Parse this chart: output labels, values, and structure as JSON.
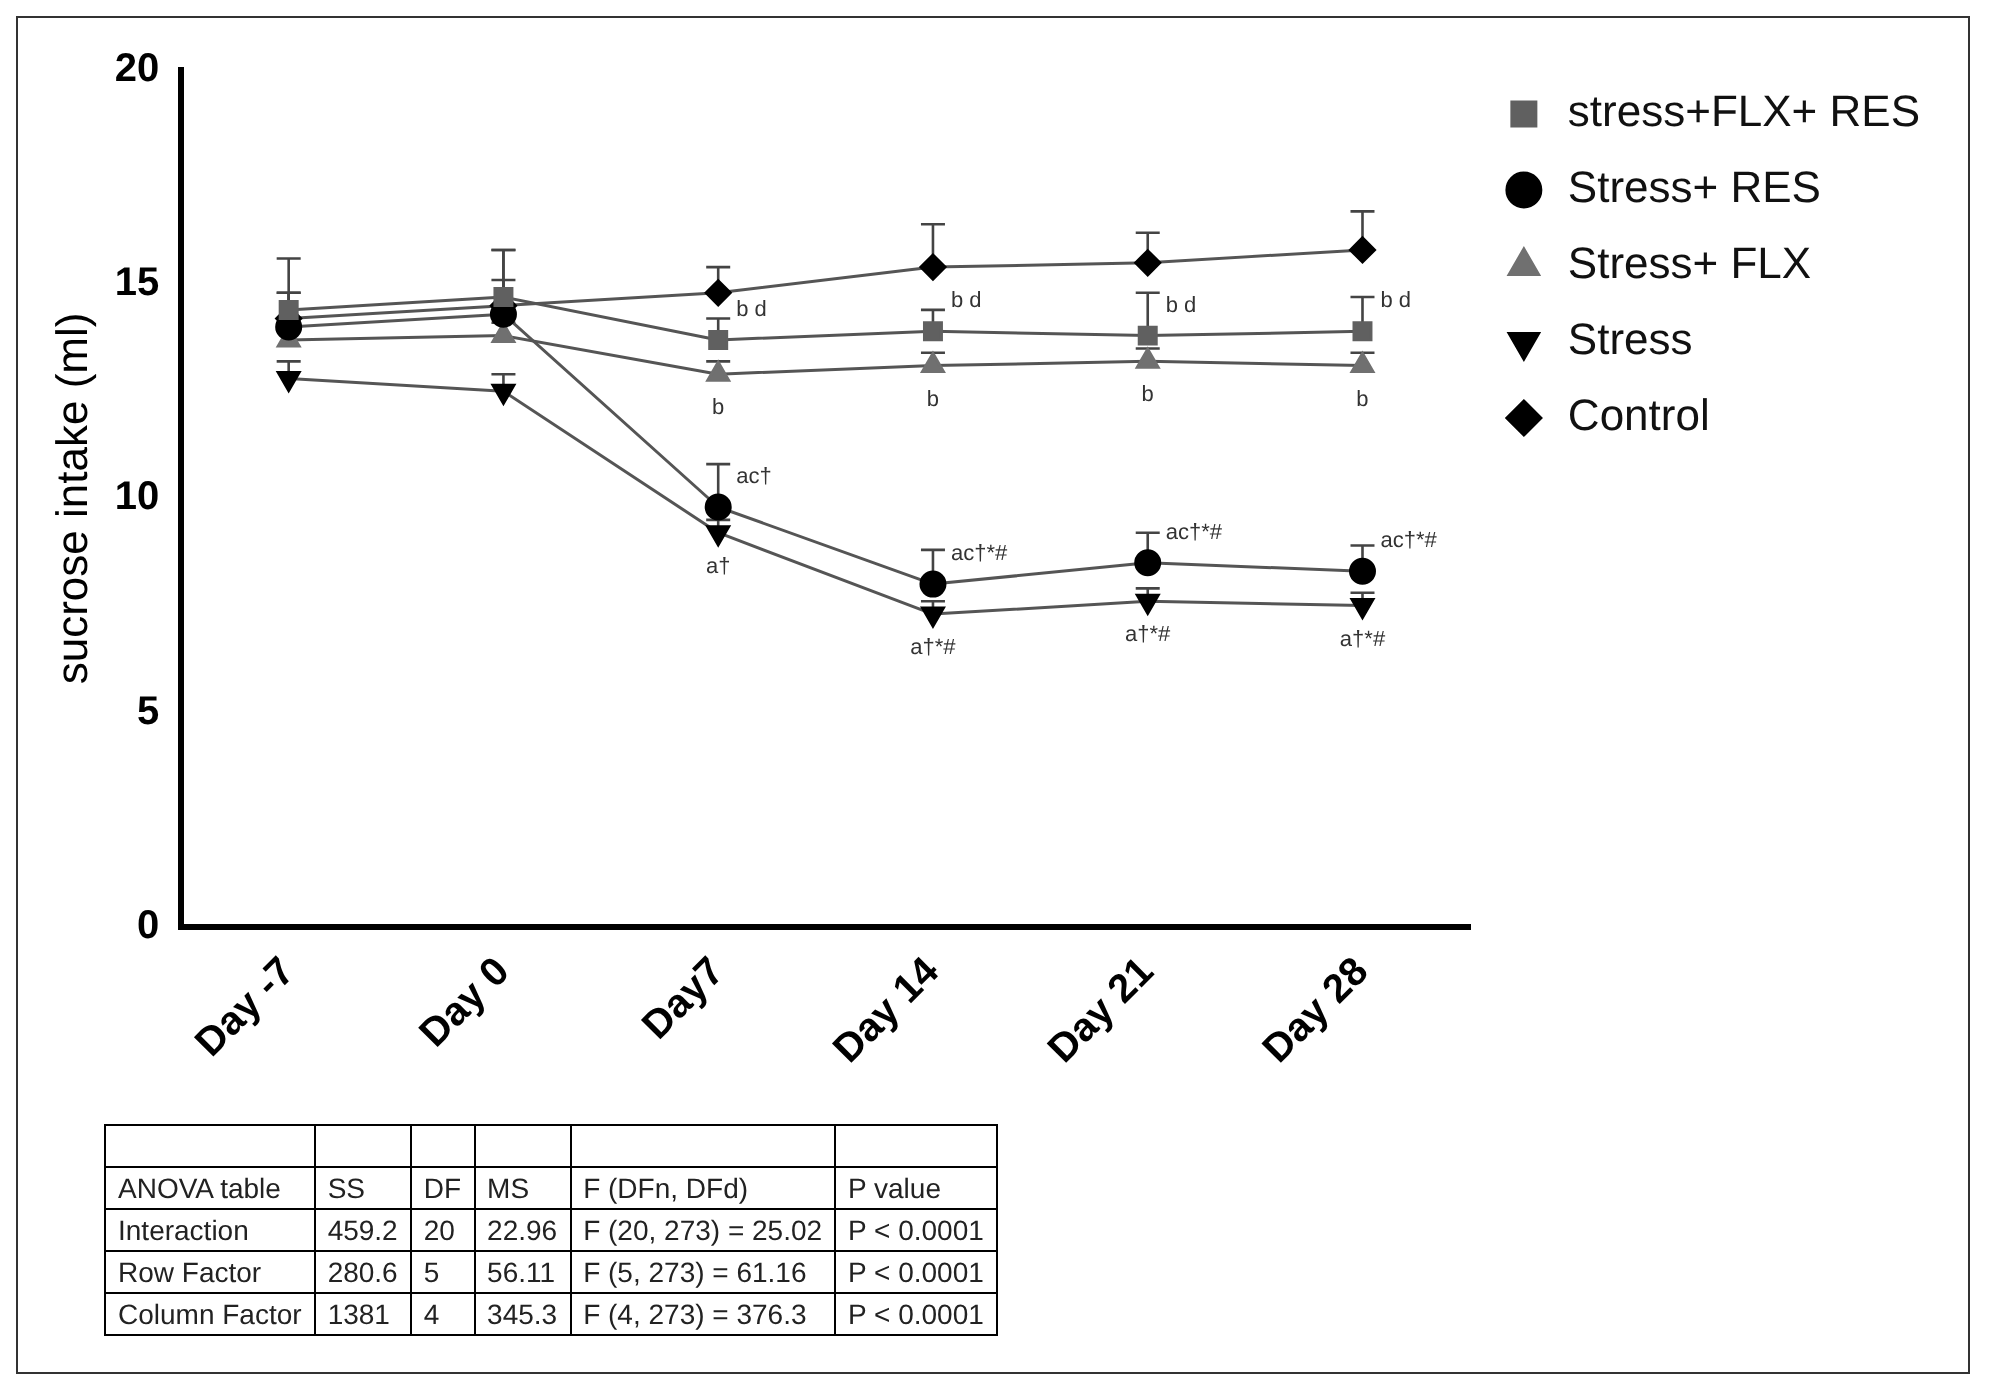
{
  "chart_data": {
    "type": "line",
    "ylabel": "sucrose intake (ml)",
    "categories": [
      "Day -7",
      "Day 0",
      "Day7",
      "Day 14",
      "Day 21",
      "Day 28"
    ],
    "ylim": [
      0,
      20
    ],
    "yticks": [
      0,
      5,
      10,
      15,
      20
    ],
    "grid": false,
    "legend": "top right",
    "line_style": "solid",
    "series": [
      {
        "name": "stress+FLX+ RES",
        "color": "#606060",
        "marker": "square",
        "values": [
          14.4,
          14.7,
          13.7,
          13.9,
          13.8,
          13.9
        ],
        "errors": [
          [
            14.4,
            14.8
          ],
          [
            14.7,
            15.1
          ],
          [
            13.7,
            14.2
          ],
          [
            13.9,
            14.4
          ],
          [
            13.8,
            14.8
          ],
          [
            13.9,
            14.7
          ]
        ]
      },
      {
        "name": "Stress+ RES",
        "color": "#000000",
        "marker": "circle",
        "values": [
          14.0,
          14.3,
          9.8,
          8.0,
          8.5,
          8.3
        ],
        "errors": [
          [
            14.0,
            14.8
          ],
          [
            14.3,
            15.8
          ],
          [
            9.8,
            10.8
          ],
          [
            8.0,
            8.8
          ],
          [
            8.5,
            9.2
          ],
          [
            8.3,
            8.9
          ]
        ]
      },
      {
        "name": "Stress+ FLX",
        "color": "#707070",
        "marker": "triangle",
        "values": [
          13.7,
          13.8,
          12.9,
          13.1,
          13.2,
          13.1
        ],
        "errors": [
          [
            13.7,
            14.2
          ],
          [
            13.8,
            14.1
          ],
          [
            12.9,
            13.2
          ],
          [
            13.1,
            13.4
          ],
          [
            13.2,
            13.5
          ],
          [
            13.1,
            13.4
          ]
        ]
      },
      {
        "name": "Stress",
        "color": "#000000",
        "marker": "triangle-down",
        "values": [
          12.8,
          12.5,
          9.2,
          7.3,
          7.6,
          7.5
        ],
        "errors": [
          [
            12.8,
            13.2
          ],
          [
            12.5,
            12.9
          ],
          [
            9.2,
            9.5
          ],
          [
            7.3,
            7.6
          ],
          [
            7.6,
            7.9
          ],
          [
            7.5,
            7.8
          ]
        ]
      },
      {
        "name": "Control",
        "color": "#000000",
        "marker": "diamond",
        "values": [
          14.2,
          14.5,
          14.8,
          15.4,
          15.5,
          15.8
        ],
        "errors": [
          [
            14.2,
            15.6
          ],
          [
            14.5,
            15.8
          ],
          [
            14.8,
            15.4
          ],
          [
            15.4,
            16.4
          ],
          [
            15.5,
            16.2
          ],
          [
            15.8,
            16.7
          ]
        ]
      }
    ],
    "annotations": [
      {
        "text": "b d",
        "x": "Day7",
        "y": 13.7
      },
      {
        "text": "b d",
        "x": "Day 14",
        "y": 13.9
      },
      {
        "text": "b d",
        "x": "Day 21",
        "y": 13.8
      },
      {
        "text": "b d",
        "x": "Day 28",
        "y": 13.9
      },
      {
        "text": "b",
        "x": "Day7",
        "y": 12.9
      },
      {
        "text": "b",
        "x": "Day 14",
        "y": 13.1
      },
      {
        "text": "b",
        "x": "Day 21",
        "y": 13.2
      },
      {
        "text": "b",
        "x": "Day 28",
        "y": 13.1
      },
      {
        "text": "ac†",
        "x": "Day7",
        "y": 9.8
      },
      {
        "text": "ac†*#",
        "x": "Day 14",
        "y": 8.0
      },
      {
        "text": "ac†*#",
        "x": "Day 21",
        "y": 8.5
      },
      {
        "text": "ac†*#",
        "x": "Day 28",
        "y": 8.3
      },
      {
        "text": "a†",
        "x": "Day7",
        "y": 9.2
      },
      {
        "text": "a†*#",
        "x": "Day 14",
        "y": 7.3
      },
      {
        "text": "a†*#",
        "x": "Day 21",
        "y": 7.6
      },
      {
        "text": "a†*#",
        "x": "Day 28",
        "y": 7.5
      },
      "ANOVA table",
      "SS",
      "DF",
      "MS",
      "F (DFn, DFd)",
      "P value",
      "Interaction",
      "459.2",
      "20",
      "22.96",
      "F (20, 273) = 25.02",
      "P < 0.0001",
      "Row Factor",
      "280.6",
      "5",
      "56.11",
      "F (5, 273) = 61.16",
      "P < 0.0001",
      "Column Factor",
      "1381",
      "4",
      "345.3",
      "F (4, 273) = 376.3",
      "P < 0.0001"
    ]
  }
}
